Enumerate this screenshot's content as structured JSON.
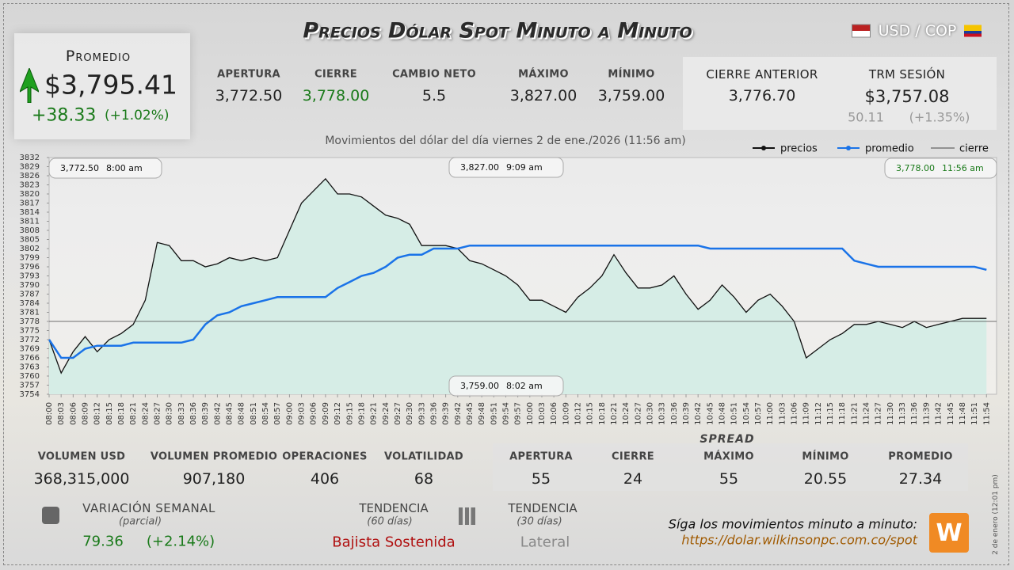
{
  "header": {
    "title": "Precios Dólar Spot Minuto a Minuto",
    "pair": "USD / COP"
  },
  "summary": {
    "label": "Promedio",
    "value": "$3,795.41",
    "change": "+38.33",
    "change_pct": "(+1.02%)"
  },
  "stats": [
    {
      "label": "APERTURA",
      "value": "3,772.50"
    },
    {
      "label": "CIERRE",
      "value": "3,778.00"
    },
    {
      "label": "CAMBIO NETO",
      "value": "5.5"
    },
    {
      "label": "MÁXIMO",
      "value": "3,827.00"
    },
    {
      "label": "MÍNIMO",
      "value": "3,759.00"
    }
  ],
  "previous": {
    "close": {
      "label": "CIERRE ANTERIOR",
      "value": "3,776.70"
    },
    "trm": {
      "label": "TRM SESIÓN",
      "value": "$3,757.08",
      "change": "50.11",
      "change_pct": "(+1.35%)"
    }
  },
  "volume": [
    {
      "label": "VOLUMEN USD",
      "value": "368,315,000"
    },
    {
      "label": "VOLUMEN PROMEDIO",
      "value": "907,180"
    },
    {
      "label": "OPERACIONES",
      "value": "406"
    },
    {
      "label": "VOLATILIDAD",
      "value": "68"
    }
  ],
  "spread": {
    "title": "SPREAD",
    "items": [
      {
        "label": "APERTURA",
        "value": "55"
      },
      {
        "label": "CIERRE",
        "value": "24"
      },
      {
        "label": "MÁXIMO",
        "value": "55"
      },
      {
        "label": "MÍNIMO",
        "value": "20.55"
      },
      {
        "label": "PROMEDIO",
        "value": "27.34"
      }
    ]
  },
  "weekly": {
    "label": "VARIACIÓN SEMANAL",
    "note": "(parcial)",
    "value": "79.36",
    "pct": "(+2.14%)"
  },
  "trend60": {
    "label": "TENDENCIA",
    "note": "(60 días)",
    "value": "Bajista Sostenida"
  },
  "trend30": {
    "label": "TENDENCIA",
    "note": "(30 días)",
    "value": "Lateral"
  },
  "footer": {
    "follow": "Síga los movimientos minuto a minuto:",
    "url": "https://dolar.wilkinsonpc.com.co/spot",
    "stamp": "2 de enero (12:01 pm)"
  },
  "chart_data": {
    "type": "line",
    "subtitle": "Movimientos del dólar del día viernes 2 de ene./2026 (11:56 am)",
    "categories": [
      "08:00",
      "08:03",
      "08:06",
      "08:09",
      "08:12",
      "08:15",
      "08:18",
      "08:21",
      "08:24",
      "08:27",
      "08:30",
      "08:33",
      "08:36",
      "08:39",
      "08:42",
      "08:45",
      "08:48",
      "08:51",
      "08:54",
      "08:57",
      "09:00",
      "09:03",
      "09:06",
      "09:09",
      "09:12",
      "09:15",
      "09:18",
      "09:21",
      "09:24",
      "09:27",
      "09:30",
      "09:33",
      "09:36",
      "09:39",
      "09:42",
      "09:45",
      "09:48",
      "09:51",
      "09:54",
      "09:57",
      "10:00",
      "10:03",
      "10:06",
      "10:09",
      "10:12",
      "10:15",
      "10:18",
      "10:21",
      "10:24",
      "10:27",
      "10:30",
      "10:33",
      "10:36",
      "10:39",
      "10:42",
      "10:45",
      "10:48",
      "10:51",
      "10:54",
      "10:57",
      "11:00",
      "11:03",
      "11:06",
      "11:09",
      "11:12",
      "11:15",
      "11:18",
      "11:21",
      "11:24",
      "11:27",
      "11:30",
      "11:33",
      "11:36",
      "11:39",
      "11:42",
      "11:45",
      "11:48",
      "11:51",
      "11:54"
    ],
    "series": [
      {
        "name": "precios",
        "color": "#111111",
        "values": [
          3772,
          3761,
          3768,
          3773,
          3768,
          3772,
          3774,
          3777,
          3785,
          3804,
          3803,
          3798,
          3798,
          3796,
          3797,
          3799,
          3798,
          3799,
          3798,
          3799,
          3808,
          3817,
          3821,
          3825,
          3820,
          3820,
          3819,
          3816,
          3813,
          3812,
          3810,
          3803,
          3803,
          3803,
          3802,
          3798,
          3797,
          3795,
          3793,
          3790,
          3785,
          3785,
          3783,
          3781,
          3786,
          3789,
          3793,
          3800,
          3794,
          3789,
          3789,
          3790,
          3793,
          3787,
          3782,
          3785,
          3790,
          3786,
          3781,
          3785,
          3787,
          3783,
          3778,
          3766,
          3769,
          3772,
          3774,
          3777,
          3777,
          3778,
          3777,
          3776,
          3778,
          3776,
          3777,
          3778,
          3779,
          3779,
          3779
        ]
      },
      {
        "name": "promedio",
        "color": "#1a73e8",
        "values": [
          3772,
          3766,
          3766,
          3769,
          3770,
          3770,
          3770,
          3771,
          3771,
          3771,
          3771,
          3771,
          3772,
          3777,
          3780,
          3781,
          3783,
          3784,
          3785,
          3786,
          3786,
          3786,
          3786,
          3786,
          3789,
          3791,
          3793,
          3794,
          3796,
          3799,
          3800,
          3800,
          3802,
          3802,
          3802,
          3803,
          3803,
          3803,
          3803,
          3803,
          3803,
          3803,
          3803,
          3803,
          3803,
          3803,
          3803,
          3803,
          3803,
          3803,
          3803,
          3803,
          3803,
          3803,
          3803,
          3802,
          3802,
          3802,
          3802,
          3802,
          3802,
          3802,
          3802,
          3802,
          3802,
          3802,
          3802,
          3798,
          3797,
          3796,
          3796,
          3796,
          3796,
          3796,
          3796,
          3796,
          3796,
          3796,
          3795
        ]
      }
    ],
    "reference_line": {
      "name": "cierre",
      "value": 3778,
      "color": "#444444"
    },
    "annotations": [
      {
        "price": "3,772.50",
        "time": "8:00 am"
      },
      {
        "price": "3,827.00",
        "time": "9:09 am"
      },
      {
        "price": "3,778.00",
        "time": "11:56 am"
      },
      {
        "price": "3,759.00",
        "time": "8:02 am"
      }
    ],
    "fill": "#d6ede6",
    "ylim": [
      3754,
      3832
    ],
    "yticks": [
      3754,
      3757,
      3760,
      3763,
      3766,
      3769,
      3772,
      3775,
      3778,
      3781,
      3784,
      3787,
      3790,
      3793,
      3796,
      3799,
      3802,
      3805,
      3808,
      3811,
      3814,
      3817,
      3820,
      3823,
      3826,
      3829,
      3832
    ]
  }
}
